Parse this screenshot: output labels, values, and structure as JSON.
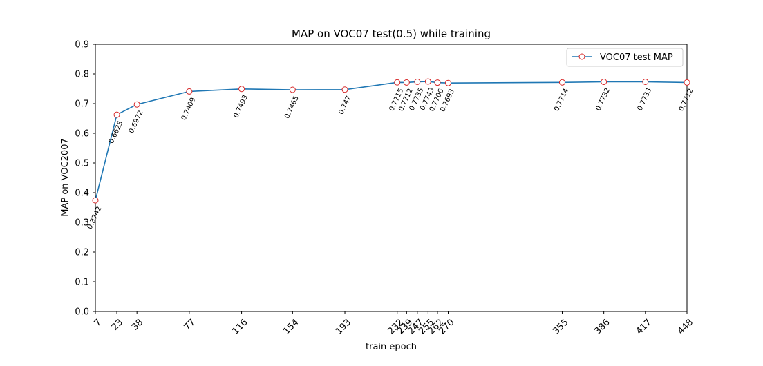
{
  "colors": {
    "line": "#1f77b4",
    "marker_edge": "#d62728",
    "marker_face": "#ffffff",
    "axis": "#000000",
    "background": "#ffffff"
  },
  "chart_data": {
    "type": "line",
    "title": "MAP on VOC07 test(0.5) while training",
    "xlabel": "train epoch",
    "ylabel": "MAP on VOC2007",
    "xlim": [
      7,
      448
    ],
    "ylim": [
      0.0,
      0.9
    ],
    "grid": false,
    "legend_position": "top-right",
    "x": [
      7,
      23,
      38,
      77,
      116,
      154,
      193,
      232,
      239,
      247,
      255,
      262,
      270,
      355,
      386,
      417,
      448
    ],
    "x_tick_labels": [
      "7",
      "23",
      "38",
      "77",
      "116",
      "154",
      "193",
      "232",
      "239",
      "247",
      "255",
      "262",
      "270",
      "355",
      "386",
      "417",
      "448"
    ],
    "y_ticks": [
      0.0,
      0.1,
      0.2,
      0.3,
      0.4,
      0.5,
      0.6,
      0.7,
      0.8,
      0.9
    ],
    "y_tick_labels": [
      "0.0",
      "0.1",
      "0.2",
      "0.3",
      "0.4",
      "0.5",
      "0.6",
      "0.7",
      "0.8",
      "0.9"
    ],
    "series": [
      {
        "name": "VOC07 test MAP",
        "values": [
          0.3742,
          0.6625,
          0.6972,
          0.7409,
          0.7493,
          0.7465,
          0.747,
          0.7715,
          0.7712,
          0.7735,
          0.7743,
          0.7706,
          0.7693,
          0.7714,
          0.7732,
          0.7733,
          0.7712
        ],
        "labels": [
          "0.3742",
          "0.6625",
          "0.6972",
          "0.7409",
          "0.7493",
          "0.7465",
          "0.747",
          "0.7715",
          "0.7712",
          "0.7735",
          "0.7743",
          "0.7706",
          "0.7693",
          "0.7714",
          "0.7732",
          "0.7733",
          "0.7712"
        ]
      }
    ]
  }
}
